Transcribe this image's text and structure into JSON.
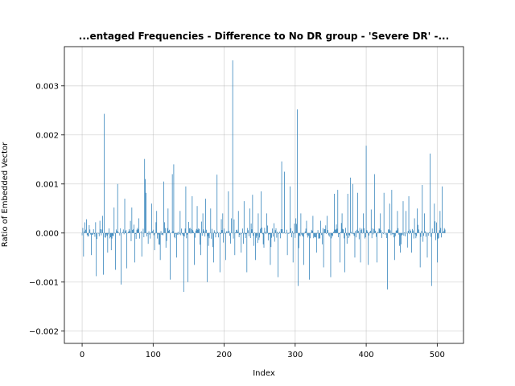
{
  "chart_data": {
    "type": "bar",
    "title": "...entaged Frequencies - Difference to No DR group - 'Severe DR' -...",
    "xlabel": "Index",
    "ylabel": "Ratio of Embedded Vector",
    "xlim": [
      -25,
      537
    ],
    "ylim": [
      -0.00225,
      0.0038
    ],
    "xticks": [
      0,
      100,
      200,
      300,
      400,
      500
    ],
    "xtick_labels": [
      "0",
      "100",
      "200",
      "300",
      "400",
      "500"
    ],
    "yticks": [
      -0.002,
      -0.001,
      0.0,
      0.001,
      0.002,
      0.003
    ],
    "ytick_labels": [
      "−0.002",
      "−0.001",
      "0.000",
      "0.001",
      "0.002",
      "0.003"
    ],
    "grid": true,
    "bar_color": "#1f77b4",
    "n_bars": 512,
    "notable_values": [
      {
        "index": 2,
        "value": -0.00048
      },
      {
        "index": 6,
        "value": 0.00028
      },
      {
        "index": 13,
        "value": -0.00045
      },
      {
        "index": 19,
        "value": 0.00022
      },
      {
        "index": 20,
        "value": -0.00088
      },
      {
        "index": 25,
        "value": 0.00025
      },
      {
        "index": 29,
        "value": 0.00035
      },
      {
        "index": 30,
        "value": -0.00085
      },
      {
        "index": 31,
        "value": 0.00243
      },
      {
        "index": 36,
        "value": -0.0004
      },
      {
        "index": 41,
        "value": -0.00035
      },
      {
        "index": 45,
        "value": 0.00052
      },
      {
        "index": 47,
        "value": -0.00075
      },
      {
        "index": 50,
        "value": 0.001
      },
      {
        "index": 55,
        "value": -0.00105
      },
      {
        "index": 60,
        "value": 0.0007
      },
      {
        "index": 63,
        "value": -0.00072
      },
      {
        "index": 70,
        "value": 0.00052
      },
      {
        "index": 74,
        "value": -0.0006
      },
      {
        "index": 80,
        "value": 0.0003
      },
      {
        "index": 84,
        "value": -0.00048
      },
      {
        "index": 88,
        "value": 0.00151
      },
      {
        "index": 89,
        "value": 0.0011
      },
      {
        "index": 90,
        "value": 0.00082
      },
      {
        "index": 93,
        "value": -0.00022
      },
      {
        "index": 98,
        "value": 0.0006
      },
      {
        "index": 102,
        "value": -0.00035
      },
      {
        "index": 105,
        "value": 0.00045
      },
      {
        "index": 110,
        "value": -0.00055
      },
      {
        "index": 115,
        "value": 0.00105
      },
      {
        "index": 118,
        "value": -0.0003
      },
      {
        "index": 121,
        "value": 0.0005
      },
      {
        "index": 124,
        "value": -0.00095
      },
      {
        "index": 127,
        "value": 0.0012
      },
      {
        "index": 129,
        "value": 0.0014
      },
      {
        "index": 133,
        "value": -0.0005
      },
      {
        "index": 138,
        "value": 0.00045
      },
      {
        "index": 143,
        "value": -0.0012
      },
      {
        "index": 146,
        "value": 0.00095
      },
      {
        "index": 149,
        "value": -0.001
      },
      {
        "index": 155,
        "value": 0.00075
      },
      {
        "index": 158,
        "value": -0.00065
      },
      {
        "index": 162,
        "value": 0.00055
      },
      {
        "index": 167,
        "value": -0.00045
      },
      {
        "index": 170,
        "value": 0.0004
      },
      {
        "index": 174,
        "value": 0.0007
      },
      {
        "index": 176,
        "value": -0.001
      },
      {
        "index": 181,
        "value": 0.0005
      },
      {
        "index": 185,
        "value": -0.0006
      },
      {
        "index": 190,
        "value": 0.00119
      },
      {
        "index": 194,
        "value": -0.0008
      },
      {
        "index": 198,
        "value": 0.0004
      },
      {
        "index": 202,
        "value": -0.00055
      },
      {
        "index": 206,
        "value": 0.00085
      },
      {
        "index": 210,
        "value": 0.0003
      },
      {
        "index": 212,
        "value": 0.00352
      },
      {
        "index": 215,
        "value": -0.00045
      },
      {
        "index": 220,
        "value": 0.00045
      },
      {
        "index": 224,
        "value": -0.0004
      },
      {
        "index": 228,
        "value": 0.00065
      },
      {
        "index": 232,
        "value": -0.0008
      },
      {
        "index": 236,
        "value": 0.0005
      },
      {
        "index": 240,
        "value": 0.00078
      },
      {
        "index": 244,
        "value": -0.00055
      },
      {
        "index": 248,
        "value": 0.0004
      },
      {
        "index": 252,
        "value": 0.00085
      },
      {
        "index": 256,
        "value": -0.0003
      },
      {
        "index": 260,
        "value": 0.0004
      },
      {
        "index": 265,
        "value": -0.00065
      },
      {
        "index": 270,
        "value": 0.0002
      },
      {
        "index": 276,
        "value": -0.0009
      },
      {
        "index": 281,
        "value": 0.00146
      },
      {
        "index": 285,
        "value": 0.00125
      },
      {
        "index": 289,
        "value": -0.00045
      },
      {
        "index": 293,
        "value": 0.00095
      },
      {
        "index": 297,
        "value": -0.0006
      },
      {
        "index": 301,
        "value": 0.0003
      },
      {
        "index": 303,
        "value": 0.00252
      },
      {
        "index": 304,
        "value": -0.00108
      },
      {
        "index": 308,
        "value": 0.0004
      },
      {
        "index": 312,
        "value": -0.00065
      },
      {
        "index": 316,
        "value": 0.00025
      },
      {
        "index": 320,
        "value": -0.00095
      },
      {
        "index": 325,
        "value": 0.00035
      },
      {
        "index": 330,
        "value": -0.0004
      },
      {
        "index": 336,
        "value": 0.00025
      },
      {
        "index": 340,
        "value": -0.0007
      },
      {
        "index": 345,
        "value": 0.00035
      },
      {
        "index": 350,
        "value": -0.0009
      },
      {
        "index": 355,
        "value": 0.0008
      },
      {
        "index": 360,
        "value": 0.00088
      },
      {
        "index": 363,
        "value": -0.0006
      },
      {
        "index": 366,
        "value": 0.0004
      },
      {
        "index": 370,
        "value": -0.0008
      },
      {
        "index": 374,
        "value": 0.0008
      },
      {
        "index": 378,
        "value": 0.00113
      },
      {
        "index": 381,
        "value": 0.001
      },
      {
        "index": 384,
        "value": -0.0005
      },
      {
        "index": 388,
        "value": 0.00082
      },
      {
        "index": 392,
        "value": -0.0006
      },
      {
        "index": 396,
        "value": 0.0004
      },
      {
        "index": 400,
        "value": 0.00178
      },
      {
        "index": 403,
        "value": -0.00065
      },
      {
        "index": 407,
        "value": 0.00048
      },
      {
        "index": 412,
        "value": 0.0012
      },
      {
        "index": 415,
        "value": -0.0006
      },
      {
        "index": 420,
        "value": 0.0004
      },
      {
        "index": 425,
        "value": 0.00082
      },
      {
        "index": 430,
        "value": -0.00115
      },
      {
        "index": 433,
        "value": 0.0006
      },
      {
        "index": 436,
        "value": 0.00088
      },
      {
        "index": 440,
        "value": -0.00055
      },
      {
        "index": 444,
        "value": 0.00045
      },
      {
        "index": 448,
        "value": -0.0004
      },
      {
        "index": 452,
        "value": 0.00065
      },
      {
        "index": 456,
        "value": 0.00045
      },
      {
        "index": 460,
        "value": 0.00075
      },
      {
        "index": 464,
        "value": -0.0004
      },
      {
        "index": 468,
        "value": 0.0003
      },
      {
        "index": 472,
        "value": 0.0005
      },
      {
        "index": 476,
        "value": -0.0007
      },
      {
        "index": 479,
        "value": 0.00098
      },
      {
        "index": 482,
        "value": 0.0004
      },
      {
        "index": 486,
        "value": -0.0005
      },
      {
        "index": 490,
        "value": 0.00162
      },
      {
        "index": 492,
        "value": -0.00108
      },
      {
        "index": 496,
        "value": 0.0006
      },
      {
        "index": 500,
        "value": -0.0006
      },
      {
        "index": 504,
        "value": 0.00045
      },
      {
        "index": 507,
        "value": 0.00095
      },
      {
        "index": 510,
        "value": 0.0001
      }
    ]
  }
}
